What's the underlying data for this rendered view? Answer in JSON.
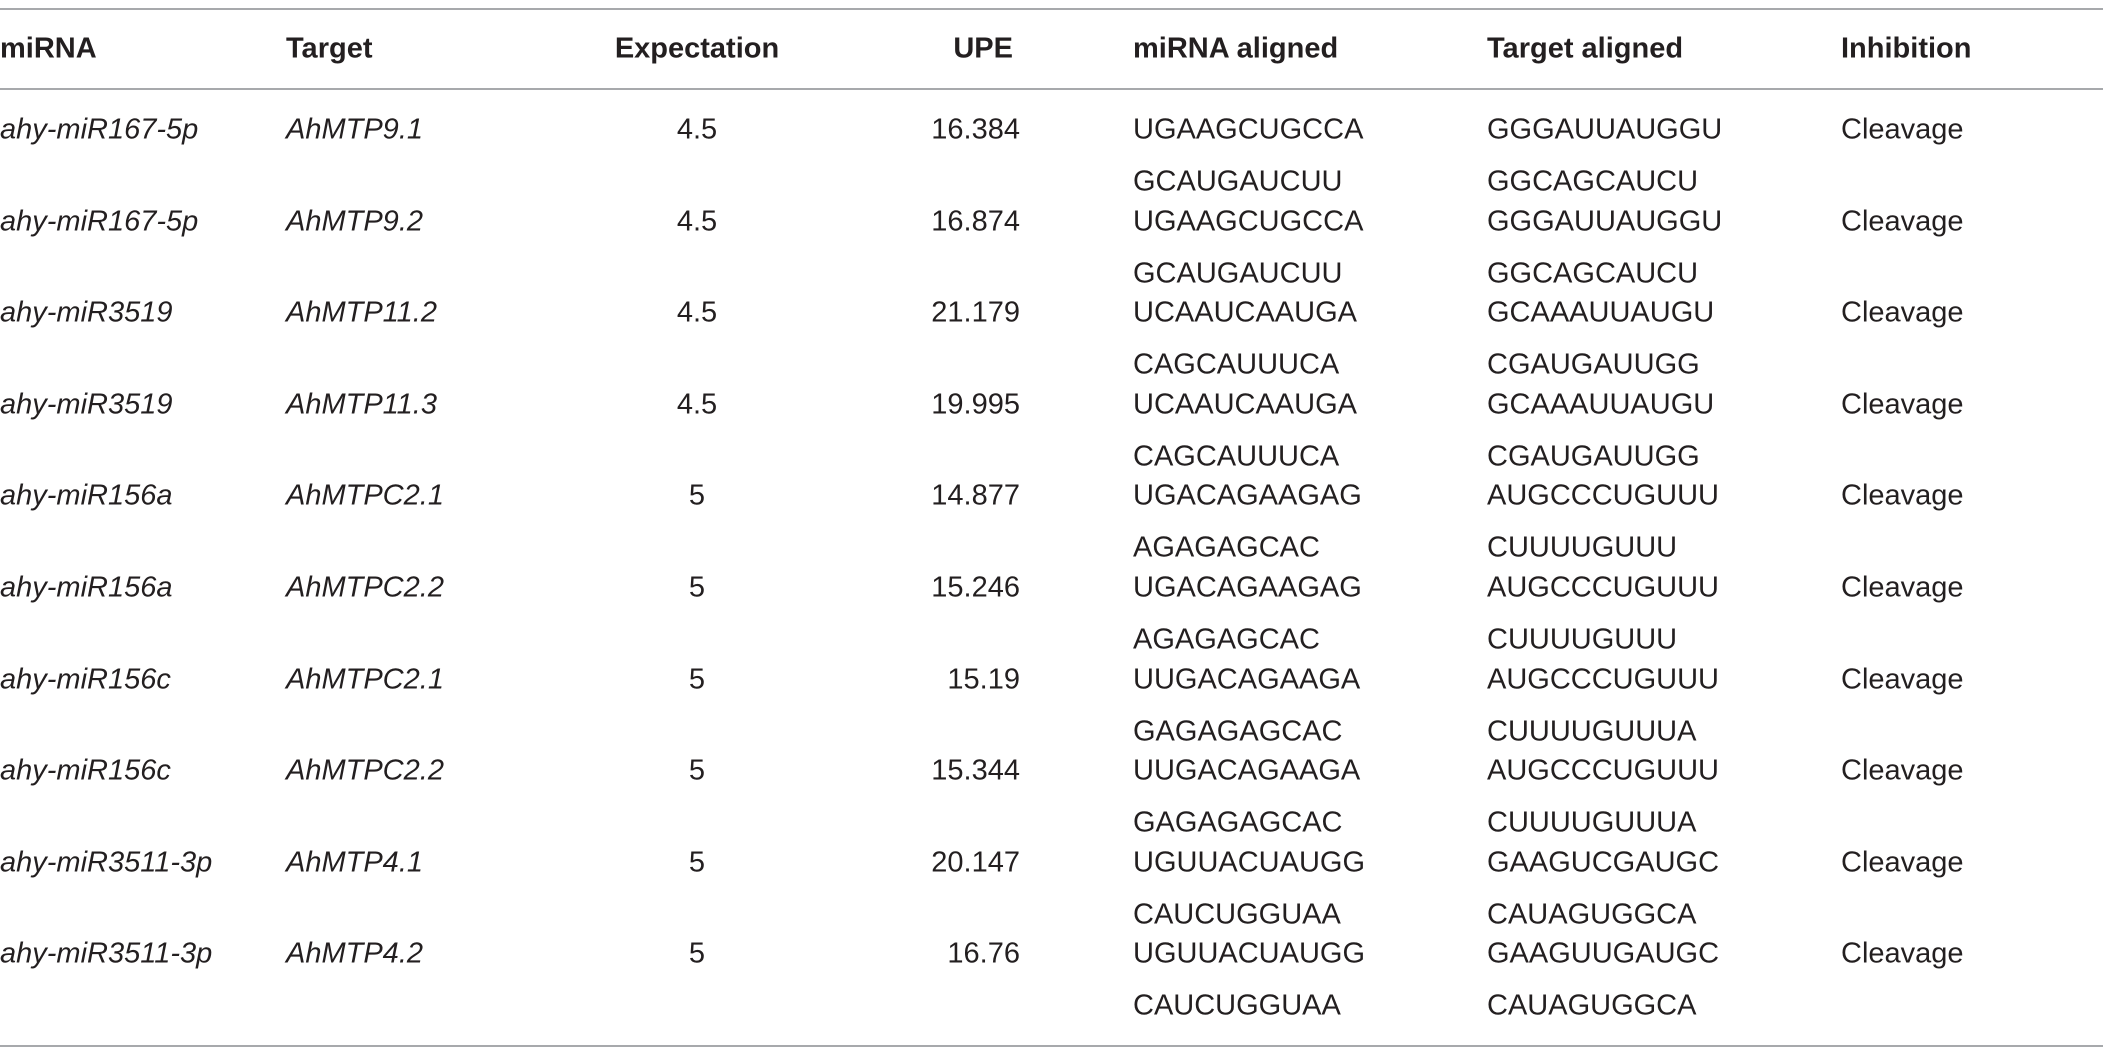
{
  "headers": {
    "mirna": "miRNA",
    "target": "Target",
    "expectation": "Expectation",
    "upe": "UPE",
    "mirna_aligned": "miRNA aligned",
    "target_aligned": "Target aligned",
    "inhibition": "Inhibition"
  },
  "rows": [
    {
      "mirna": "ahy-miR167-5p",
      "target": "AhMTP9.1",
      "expectation": "4.5",
      "upe": "16.384",
      "mirna_aligned_1": "UGAAGCUGCCA",
      "mirna_aligned_2": "GCAUGAUCUU",
      "target_aligned_1": "GGGAUUAUGGU",
      "target_aligned_2": "GGCAGCAUCU",
      "inhibition": "Cleavage"
    },
    {
      "mirna": "ahy-miR167-5p",
      "target": "AhMTP9.2",
      "expectation": "4.5",
      "upe": "16.874",
      "mirna_aligned_1": "UGAAGCUGCCA",
      "mirna_aligned_2": "GCAUGAUCUU",
      "target_aligned_1": "GGGAUUAUGGU",
      "target_aligned_2": "GGCAGCAUCU",
      "inhibition": "Cleavage"
    },
    {
      "mirna": "ahy-miR3519",
      "target": "AhMTP11.2",
      "expectation": "4.5",
      "upe": "21.179",
      "mirna_aligned_1": "UCAAUCAAUGA",
      "mirna_aligned_2": "CAGCAUUUCA",
      "target_aligned_1": "GCAAAUUAUGU",
      "target_aligned_2": "CGAUGAUUGG",
      "inhibition": "Cleavage"
    },
    {
      "mirna": "ahy-miR3519",
      "target": "AhMTP11.3",
      "expectation": "4.5",
      "upe": "19.995",
      "mirna_aligned_1": "UCAAUCAAUGA",
      "mirna_aligned_2": "CAGCAUUUCA",
      "target_aligned_1": "GCAAAUUAUGU",
      "target_aligned_2": "CGAUGAUUGG",
      "inhibition": "Cleavage"
    },
    {
      "mirna": "ahy-miR156a",
      "target": "AhMTPC2.1",
      "expectation": "5",
      "upe": "14.877",
      "mirna_aligned_1": "UGACAGAAGAG",
      "mirna_aligned_2": "AGAGAGCAC",
      "target_aligned_1": "AUGCCCUGUUU",
      "target_aligned_2": "CUUUUGUUU",
      "inhibition": "Cleavage"
    },
    {
      "mirna": "ahy-miR156a",
      "target": "AhMTPC2.2",
      "expectation": "5",
      "upe": "15.246",
      "mirna_aligned_1": "UGACAGAAGAG",
      "mirna_aligned_2": "AGAGAGCAC",
      "target_aligned_1": "AUGCCCUGUUU",
      "target_aligned_2": "CUUUUGUUU",
      "inhibition": "Cleavage"
    },
    {
      "mirna": "ahy-miR156c",
      "target": "AhMTPC2.1",
      "expectation": "5",
      "upe": "15.19",
      "mirna_aligned_1": "UUGACAGAAGA",
      "mirna_aligned_2": "GAGAGAGCAC",
      "target_aligned_1": "AUGCCCUGUUU",
      "target_aligned_2": "CUUUUGUUUA",
      "inhibition": "Cleavage"
    },
    {
      "mirna": "ahy-miR156c",
      "target": "AhMTPC2.2",
      "expectation": "5",
      "upe": "15.344",
      "mirna_aligned_1": "UUGACAGAAGA",
      "mirna_aligned_2": "GAGAGAGCAC",
      "target_aligned_1": "AUGCCCUGUUU",
      "target_aligned_2": "CUUUUGUUUA",
      "inhibition": "Cleavage"
    },
    {
      "mirna": "ahy-miR3511-3p",
      "target": "AhMTP4.1",
      "expectation": "5",
      "upe": "20.147",
      "mirna_aligned_1": "UGUUACUAUGG",
      "mirna_aligned_2": "CAUCUGGUAA",
      "target_aligned_1": "GAAGUCGAUGC",
      "target_aligned_2": "CAUAGUGGCA",
      "inhibition": "Cleavage"
    },
    {
      "mirna": "ahy-miR3511-3p",
      "target": "AhMTP4.2",
      "expectation": "5",
      "upe": "16.76",
      "mirna_aligned_1": "UGUUACUAUGG",
      "mirna_aligned_2": "CAUCUGGUAA",
      "target_aligned_1": "GAAGUUGAUGC",
      "target_aligned_2": "CAUAGUGGCA",
      "inhibition": "Cleavage"
    }
  ]
}
